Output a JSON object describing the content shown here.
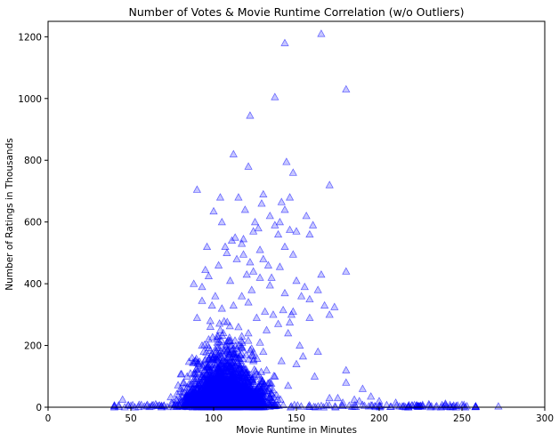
{
  "chart_data": {
    "type": "scatter",
    "title": "Number of Votes & Movie Runtime Correlation (w/o Outliers)",
    "xlabel": "Movie Runtime in Minutes",
    "ylabel": "Number of Ratings in Thousands",
    "xlim": [
      0,
      300
    ],
    "ylim": [
      0,
      1250
    ],
    "xticks": [
      0,
      50,
      100,
      150,
      200,
      250,
      300
    ],
    "yticks": [
      0,
      200,
      400,
      600,
      800,
      1000,
      1200
    ],
    "grid": false,
    "legend": "none",
    "marker": "triangle",
    "color": "#0000ff",
    "alpha": 0.22,
    "series": [
      {
        "x": [
          165,
          143,
          180,
          137,
          122,
          112,
          90,
          144,
          148,
          121,
          130,
          170,
          141,
          146,
          156,
          129,
          115,
          143,
          104,
          100,
          119,
          125,
          134,
          124,
          137,
          158,
          127,
          150,
          140,
          139,
          111,
          113,
          105,
          117,
          146,
          160,
          107,
          108,
          118,
          96,
          118,
          148,
          143,
          180,
          128,
          114,
          130,
          122,
          140,
          133,
          120,
          155,
          165,
          124,
          150,
          95,
          103,
          88,
          97,
          135,
          163,
          173,
          110,
          128,
          134,
          93,
          123,
          117,
          101,
          143,
          153,
          158,
          105,
          112,
          121,
          167,
          93,
          99,
          136,
          131,
          147,
          148,
          142,
          126,
          90,
          180,
          170,
          139,
          146,
          158,
          98,
          115,
          132,
          145,
          121,
          104,
          117,
          128,
          102,
          108,
          152,
          111,
          93,
          97,
          114,
          163,
          130,
          154,
          94,
          87,
          124,
          141,
          150,
          104,
          112,
          132,
          100,
          119,
          161,
          137,
          108,
          97,
          180,
          120,
          145,
          190,
          125,
          170,
          200,
          185,
          210,
          230,
          240,
          250,
          272,
          225,
          245,
          215,
          218,
          195,
          178,
          188,
          175,
          60,
          65,
          70,
          75,
          50,
          45,
          55,
          40,
          80,
          82,
          84,
          86
        ],
        "y": [
          1210,
          1180,
          1030,
          1005,
          945,
          820,
          705,
          795,
          760,
          780,
          690,
          720,
          665,
          680,
          620,
          660,
          680,
          640,
          680,
          635,
          640,
          600,
          620,
          570,
          590,
          560,
          580,
          570,
          600,
          560,
          540,
          550,
          600,
          530,
          575,
          590,
          520,
          500,
          495,
          520,
          545,
          495,
          520,
          440,
          510,
          480,
          480,
          470,
          455,
          460,
          430,
          390,
          430,
          440,
          410,
          445,
          460,
          400,
          425,
          420,
          380,
          325,
          410,
          420,
          395,
          390,
          380,
          360,
          360,
          370,
          360,
          350,
          320,
          330,
          340,
          330,
          345,
          330,
          300,
          310,
          300,
          310,
          315,
          290,
          290,
          120,
          300,
          270,
          275,
          290,
          280,
          260,
          250,
          240,
          240,
          250,
          230,
          210,
          220,
          190,
          200,
          200,
          200,
          220,
          190,
          180,
          180,
          165,
          180,
          160,
          150,
          150,
          140,
          140,
          130,
          120,
          120,
          110,
          100,
          100,
          90,
          85,
          80,
          70,
          70,
          60,
          50,
          30,
          20,
          25,
          15,
          10,
          12,
          8,
          3,
          5,
          6,
          4,
          7,
          35,
          15,
          20,
          30,
          8,
          10,
          6,
          12,
          5,
          25,
          8,
          3,
          60,
          80,
          100,
          110
        ]
      }
    ]
  }
}
